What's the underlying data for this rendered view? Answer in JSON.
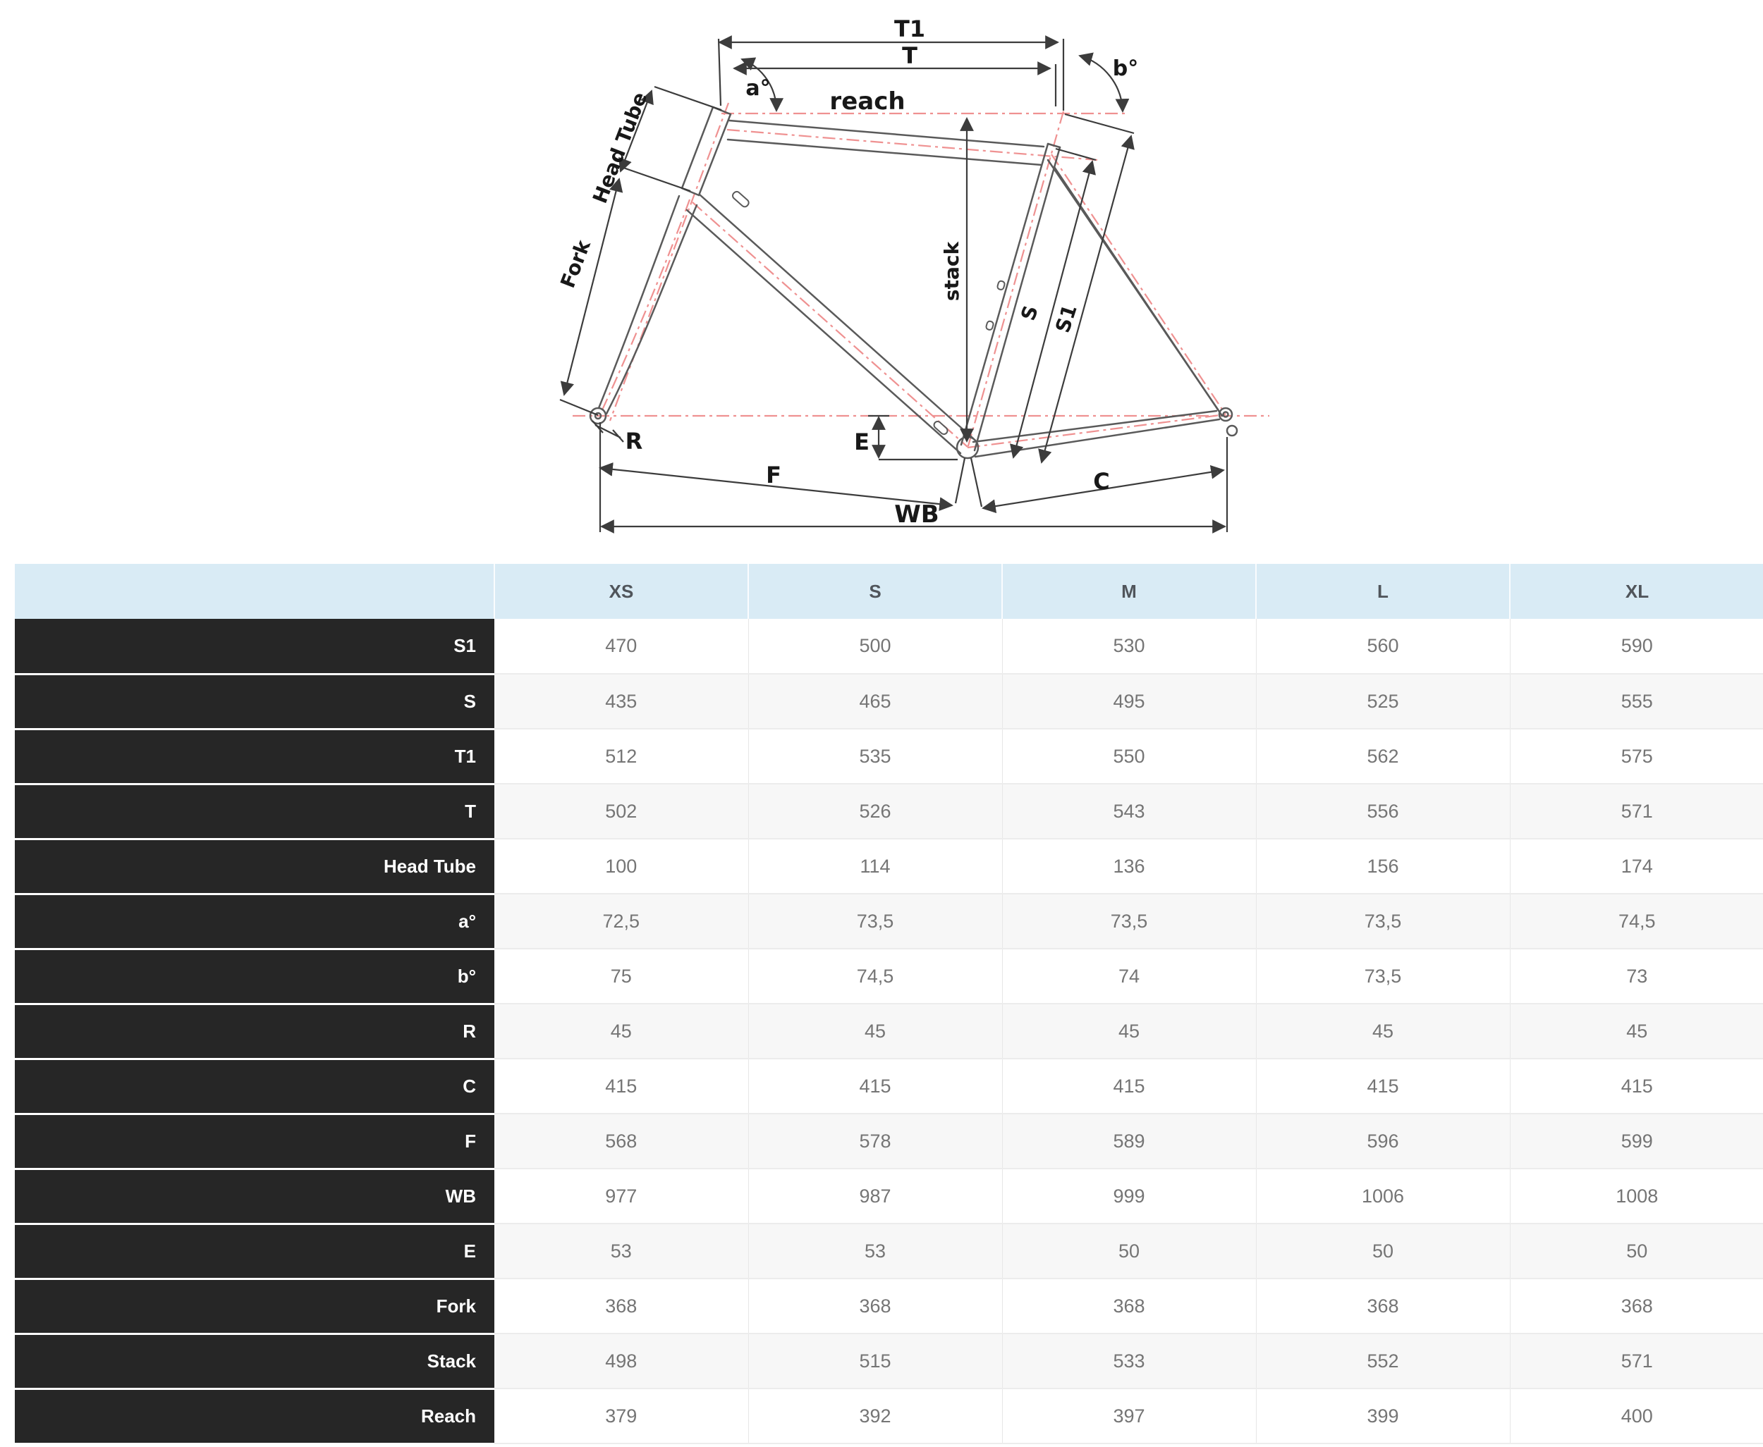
{
  "diagram": {
    "labels": {
      "t1": "T1",
      "t": "T",
      "a_angle": "a°",
      "b_angle": "b°",
      "reach": "reach",
      "stack": "stack",
      "head_tube": "Head Tube",
      "fork": "Fork",
      "s": "S",
      "s1": "S1",
      "r": "R",
      "e": "E",
      "f": "F",
      "c": "C",
      "wb": "WB"
    },
    "colors": {
      "frame_line": "#5a5a5a",
      "centerline_red": "#ef9191",
      "dimension_line": "#3c3c3c"
    }
  },
  "table": {
    "columns": [
      "XS",
      "S",
      "M",
      "L",
      "XL"
    ],
    "rows": [
      {
        "label": "S1",
        "values": [
          "470",
          "500",
          "530",
          "560",
          "590"
        ]
      },
      {
        "label": "S",
        "values": [
          "435",
          "465",
          "495",
          "525",
          "555"
        ]
      },
      {
        "label": "T1",
        "values": [
          "512",
          "535",
          "550",
          "562",
          "575"
        ]
      },
      {
        "label": "T",
        "values": [
          "502",
          "526",
          "543",
          "556",
          "571"
        ]
      },
      {
        "label": "Head Tube",
        "values": [
          "100",
          "114",
          "136",
          "156",
          "174"
        ]
      },
      {
        "label": "a°",
        "values": [
          "72,5",
          "73,5",
          "73,5",
          "73,5",
          "74,5"
        ]
      },
      {
        "label": "b°",
        "values": [
          "75",
          "74,5",
          "74",
          "73,5",
          "73"
        ]
      },
      {
        "label": "R",
        "values": [
          "45",
          "45",
          "45",
          "45",
          "45"
        ]
      },
      {
        "label": "C",
        "values": [
          "415",
          "415",
          "415",
          "415",
          "415"
        ]
      },
      {
        "label": "F",
        "values": [
          "568",
          "578",
          "589",
          "596",
          "599"
        ]
      },
      {
        "label": "WB",
        "values": [
          "977",
          "987",
          "999",
          "1006",
          "1008"
        ]
      },
      {
        "label": "E",
        "values": [
          "53",
          "53",
          "50",
          "50",
          "50"
        ]
      },
      {
        "label": "Fork",
        "values": [
          "368",
          "368",
          "368",
          "368",
          "368"
        ]
      },
      {
        "label": "Stack",
        "values": [
          "498",
          "515",
          "533",
          "552",
          "571"
        ]
      },
      {
        "label": "Reach",
        "values": [
          "379",
          "392",
          "397",
          "399",
          "400"
        ]
      }
    ],
    "colors": {
      "header_bg": "#d9ebf5",
      "label_bg": "#262626",
      "stripe_bg": "#f7f7f7"
    }
  }
}
